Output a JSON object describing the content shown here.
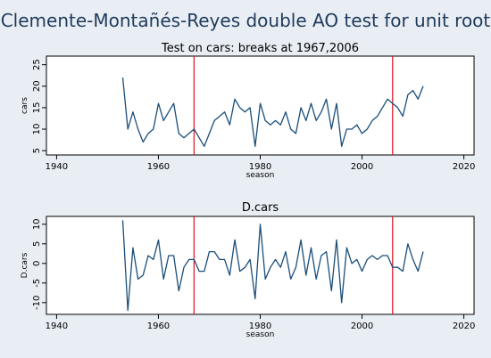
{
  "figure": {
    "title": "Clemente-Montañés-Reyes double AO test for unit root"
  },
  "colors": {
    "background": "#e8eef3",
    "plot_area": "#ffffff",
    "series": "#1a4e7a",
    "breaks": "#e01020",
    "title": "#1f3a5c"
  },
  "chart_data": [
    {
      "type": "line",
      "title": "Test on cars: breaks at 1967,2006",
      "xlabel": "season",
      "ylabel": "cars",
      "xlim": [
        1938,
        2022
      ],
      "ylim": [
        4,
        27
      ],
      "xticks": [
        1940,
        1960,
        1980,
        2000,
        2020
      ],
      "yticks": [
        5,
        10,
        15,
        20,
        25
      ],
      "breaks": [
        1967,
        2006
      ],
      "grid": false,
      "series": [
        {
          "x": [
            1953,
            1954,
            1955,
            1956,
            1957,
            1958,
            1959,
            1960,
            1961,
            1962,
            1963,
            1964,
            1965,
            1966,
            1967,
            1968,
            1969,
            1970,
            1971,
            1972,
            1973,
            1974,
            1975,
            1976,
            1977,
            1978,
            1979,
            1980,
            1981,
            1982,
            1983,
            1984,
            1985,
            1986,
            1987,
            1988,
            1989,
            1990,
            1991,
            1992,
            1993,
            1994,
            1995,
            1996,
            1997,
            1998,
            1999,
            2000,
            2001,
            2002,
            2003,
            2004,
            2005,
            2006,
            2007,
            2008,
            2009,
            2010,
            2011,
            2012
          ],
          "values": [
            22,
            10,
            14,
            10,
            7,
            9,
            10,
            16,
            12,
            14,
            16,
            9,
            8,
            9,
            10,
            8,
            6,
            9,
            12,
            13,
            14,
            11,
            17,
            15,
            14,
            15,
            6,
            16,
            12,
            11,
            12,
            11,
            14,
            10,
            9,
            15,
            12,
            16,
            12,
            14,
            17,
            10,
            16,
            6,
            10,
            10,
            11,
            9,
            10,
            12,
            13,
            15,
            17,
            16,
            15,
            13,
            18,
            19,
            17,
            20
          ]
        }
      ]
    },
    {
      "type": "line",
      "title": "D.cars",
      "xlabel": "season",
      "ylabel": "D.cars",
      "xlim": [
        1938,
        2022
      ],
      "ylim": [
        -13,
        12
      ],
      "xticks": [
        1940,
        1960,
        1980,
        2000,
        2020
      ],
      "yticks": [
        10,
        5,
        0,
        -5,
        -10
      ],
      "breaks": [
        1967,
        2006
      ],
      "grid": false,
      "series": [
        {
          "x": [
            1953,
            1954,
            1955,
            1956,
            1957,
            1958,
            1959,
            1960,
            1961,
            1962,
            1963,
            1964,
            1965,
            1966,
            1967,
            1968,
            1969,
            1970,
            1971,
            1972,
            1973,
            1974,
            1975,
            1976,
            1977,
            1978,
            1979,
            1980,
            1981,
            1982,
            1983,
            1984,
            1985,
            1986,
            1987,
            1988,
            1989,
            1990,
            1991,
            1992,
            1993,
            1994,
            1995,
            1996,
            1997,
            1998,
            1999,
            2000,
            2001,
            2002,
            2003,
            2004,
            2005,
            2006,
            2007,
            2008,
            2009,
            2010,
            2011,
            2012
          ],
          "values": [
            11,
            -12,
            4,
            -4,
            -3,
            2,
            1,
            6,
            -4,
            2,
            2,
            -7,
            -1,
            1,
            1,
            -2,
            -2,
            3,
            3,
            1,
            1,
            -3,
            6,
            -2,
            -1,
            1,
            -9,
            10,
            -4,
            -1,
            1,
            -1,
            3,
            -4,
            -1,
            6,
            -3,
            4,
            -4,
            2,
            3,
            -7,
            6,
            -10,
            4,
            0,
            1,
            -2,
            1,
            2,
            1,
            2,
            2,
            -1,
            -1,
            -2,
            5,
            1,
            -2,
            3
          ]
        }
      ]
    }
  ]
}
